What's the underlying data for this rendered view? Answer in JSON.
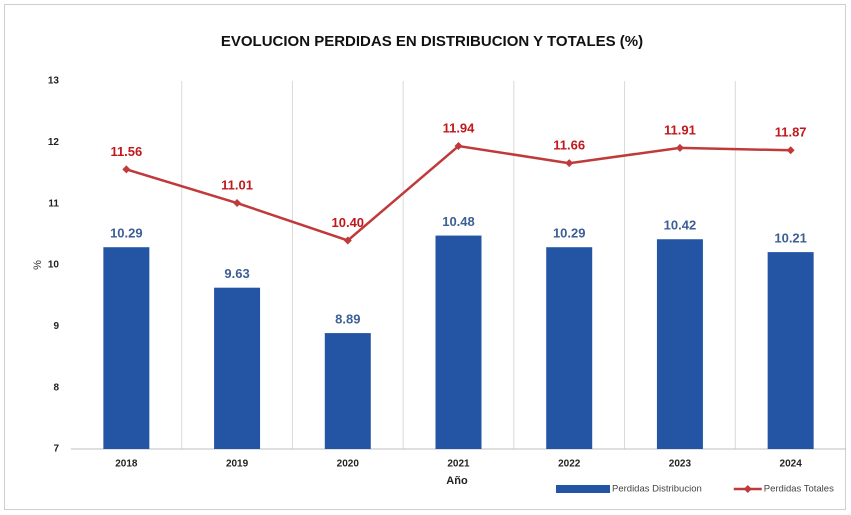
{
  "chart_data": {
    "type": "bar",
    "title": "EVOLUCION PERDIDAS EN DISTRIBUCION Y TOTALES (%)",
    "x_label": "Año",
    "y_label": "%",
    "categories": [
      "2018",
      "2019",
      "2020",
      "2021",
      "2022",
      "2023",
      "2024"
    ],
    "series": [
      {
        "name": "Perdidas Distribucion",
        "type": "bar",
        "color": "#2455a4",
        "label_color": "#3d5f93",
        "values": [
          10.29,
          9.63,
          8.89,
          10.48,
          10.29,
          10.42,
          10.21
        ],
        "value_labels": [
          "10.29",
          "9.63",
          "8.89",
          "10.48",
          "10.29",
          "10.42",
          "10.21"
        ]
      },
      {
        "name": "Perdidas Totales",
        "type": "line",
        "color": "#c0393b",
        "label_color": "#c0181c",
        "values": [
          11.56,
          11.01,
          10.4,
          11.94,
          11.66,
          11.91,
          11.87
        ],
        "value_labels": [
          "11.56",
          "11.01",
          "10.40",
          "11.94",
          "11.66",
          "11.91",
          "11.87"
        ]
      }
    ],
    "ylim": [
      7,
      13
    ],
    "yticks": [
      7,
      8,
      9,
      10,
      11,
      12,
      13
    ],
    "legend": "bottom-right"
  }
}
